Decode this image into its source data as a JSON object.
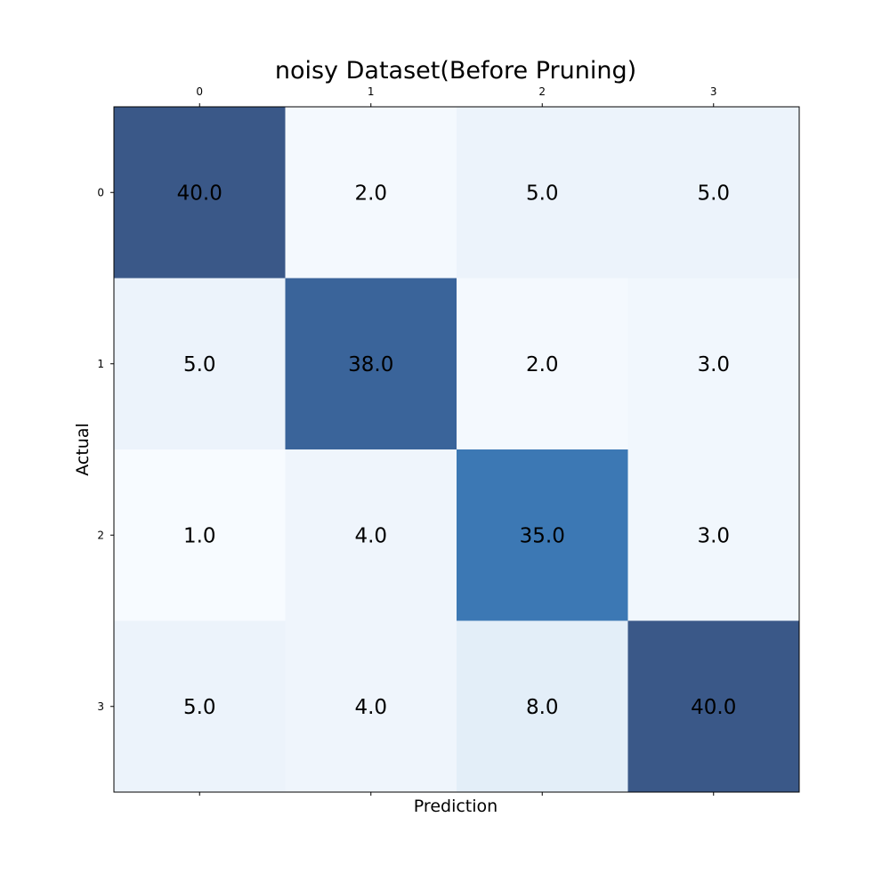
{
  "chart_data": {
    "type": "heatmap",
    "title": "noisy Dataset(Before Pruning)",
    "xlabel": "Prediction",
    "ylabel": "Actual",
    "x_categories": [
      "0",
      "1",
      "2",
      "3"
    ],
    "y_categories": [
      "0",
      "1",
      "2",
      "3"
    ],
    "values": [
      [
        40.0,
        2.0,
        5.0,
        5.0
      ],
      [
        5.0,
        38.0,
        2.0,
        3.0
      ],
      [
        1.0,
        4.0,
        35.0,
        3.0
      ],
      [
        5.0,
        4.0,
        8.0,
        40.0
      ]
    ],
    "cell_labels": [
      [
        "40.0",
        "2.0",
        "5.0",
        "5.0"
      ],
      [
        "5.0",
        "38.0",
        "2.0",
        "3.0"
      ],
      [
        "1.0",
        "4.0",
        "35.0",
        "3.0"
      ],
      [
        "5.0",
        "4.0",
        "8.0",
        "40.0"
      ]
    ],
    "colormap": "Blues",
    "x_tick_position": "top",
    "grid": false
  }
}
